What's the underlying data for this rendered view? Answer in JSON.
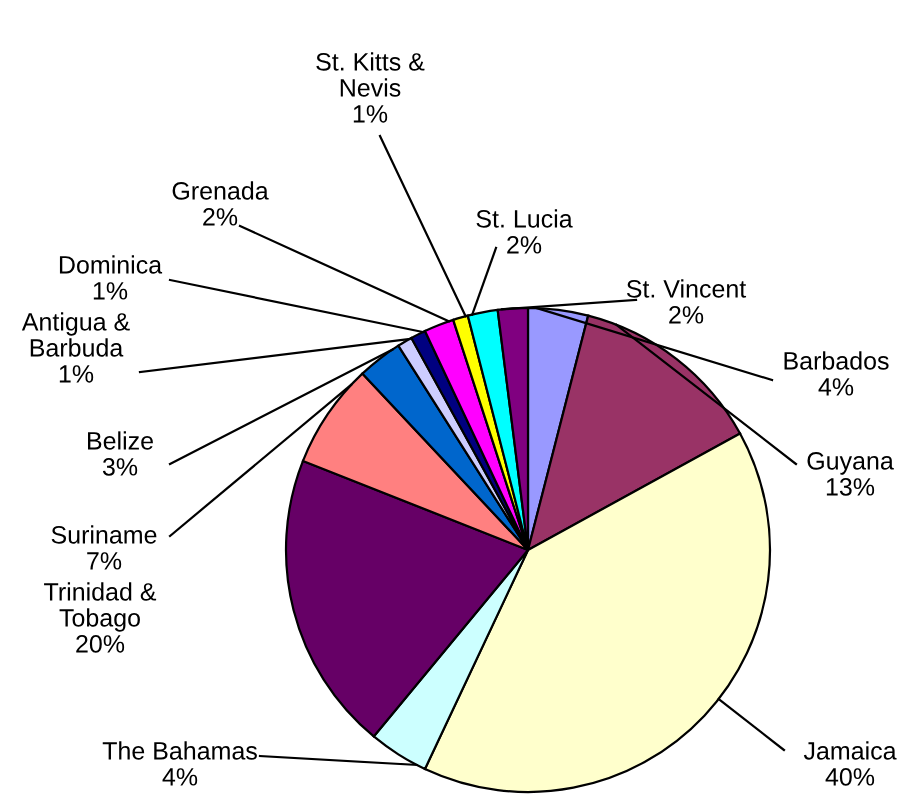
{
  "chart_data": {
    "type": "pie",
    "categories": [
      "Barbados",
      "Guyana",
      "Jamaica",
      "The Bahamas",
      "Trinidad &\nTobago",
      "Suriname",
      "Belize",
      "Antigua &\nBarbuda",
      "Dominica",
      "Grenada",
      "St. Kitts &\nNevis",
      "St. Lucia",
      "St. Vincent"
    ],
    "values": [
      4,
      13,
      40,
      4,
      20,
      7,
      3,
      1,
      1,
      2,
      1,
      2,
      2
    ],
    "value_labels": [
      "4%",
      "13%",
      "40%",
      "4%",
      "20%",
      "7%",
      "3%",
      "1%",
      "1%",
      "2%",
      "1%",
      "2%",
      "2%"
    ],
    "colors": [
      "#9999ff",
      "#993366",
      "#ffffcc",
      "#ccffff",
      "#660066",
      "#ff8080",
      "#0066cc",
      "#ccccff",
      "#000080",
      "#ff00ff",
      "#ffff00",
      "#00ffff",
      "#800080"
    ]
  }
}
